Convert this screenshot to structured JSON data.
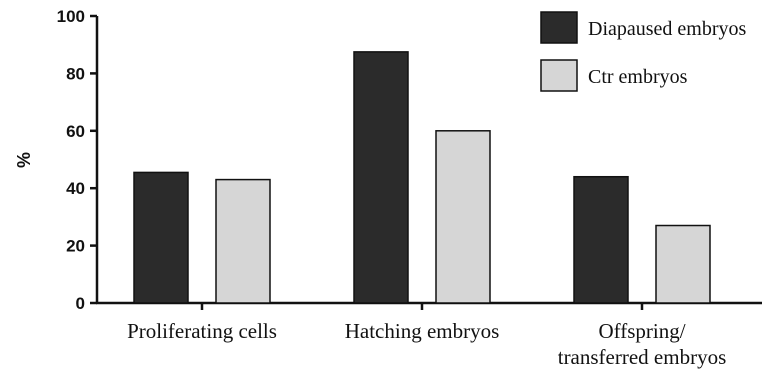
{
  "chart_data": {
    "type": "bar",
    "categories": [
      [
        "Proliferating cells"
      ],
      [
        "Hatching embryos"
      ],
      [
        "Offspring/",
        "transferred embryos"
      ]
    ],
    "series": [
      {
        "name": "Diapaused embryos",
        "color": "#2b2b2b",
        "values": [
          45.5,
          87.5,
          44.0
        ]
      },
      {
        "name": "Ctr embryos",
        "color": "#d6d6d6",
        "values": [
          43.0,
          60.0,
          27.0
        ]
      }
    ],
    "ylabel": "%",
    "ylim": [
      0,
      100
    ],
    "yticks": [
      0,
      20,
      40,
      60,
      80,
      100
    ],
    "legend": "top-right",
    "grid": false
  }
}
